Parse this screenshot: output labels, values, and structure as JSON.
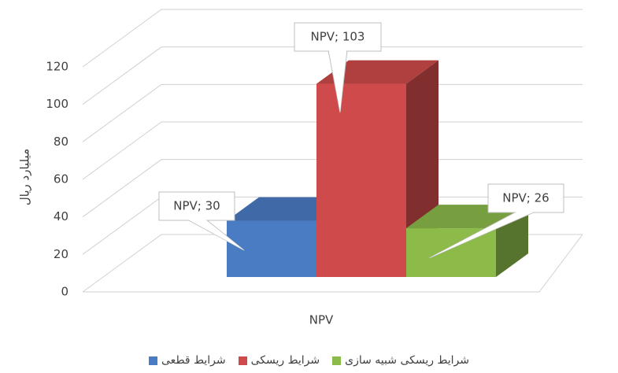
{
  "chart_data": {
    "type": "bar3d",
    "categories": [
      "NPV"
    ],
    "y_label": "میلیارد ریال",
    "series": [
      {
        "name": "شرایط قطعی",
        "color": "#4a7cc4",
        "values": [
          30
        ],
        "value_labels": [
          "NPV; 30"
        ]
      },
      {
        "name": "شرایط ریسکی",
        "color": "#cf4a4a",
        "values": [
          103
        ],
        "value_labels": [
          "NPV; 103"
        ]
      },
      {
        "name": "شرایط ریسکی شبیه سازی",
        "color": "#8cbb4a",
        "values": [
          26
        ],
        "value_labels": [
          "NPV; 26"
        ]
      }
    ],
    "ylim": [
      0,
      120
    ],
    "yticks": [
      0,
      20,
      40,
      60,
      80,
      100,
      120
    ],
    "grid": true,
    "legend": "bottom"
  }
}
